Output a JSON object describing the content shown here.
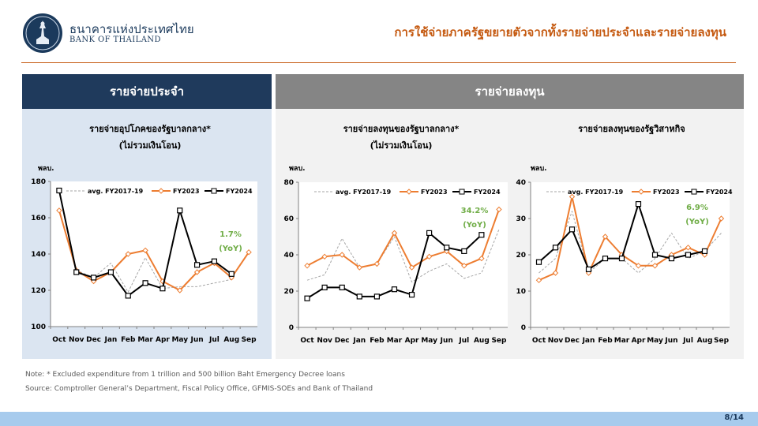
{
  "header": {
    "org_name_th": "ธนาคารแห่งประเทศไทย",
    "org_name_en": "BANK OF THAILAND",
    "slide_title": "การใช้จ่ายภาครัฐขยายตัวจากทั้งรายจ่ายประจำและรายจ่ายลงทุน"
  },
  "panels": {
    "left_title": "รายจ่ายประจำ",
    "right_title": "รายจ่ายลงทุน"
  },
  "colors": {
    "avg": "#a6a6a6",
    "fy2023": "#ed7d31",
    "fy2024": "#000000",
    "yoy": "#70ad47"
  },
  "chart_data": [
    {
      "type": "line",
      "title": "รายจ่ายอุปโภคของรัฐบาลกลาง*",
      "subtitle": "(ไม่รวมเงินโอน)",
      "ylabel": "พลบ.",
      "categories": [
        "Oct",
        "Nov",
        "Dec",
        "Jan",
        "Feb",
        "Mar",
        "Apr",
        "May",
        "Jun",
        "Jul",
        "Aug",
        "Sep"
      ],
      "ylim": [
        100,
        180
      ],
      "yticks": [
        100,
        120,
        140,
        160,
        180
      ],
      "series": [
        {
          "name": "avg. FY2017-19",
          "values": [
            null,
            131,
            127,
            135,
            119,
            138,
            121,
            122,
            122,
            124,
            126,
            null
          ]
        },
        {
          "name": "FY2023",
          "values": [
            164,
            131,
            125,
            130,
            140,
            142,
            125,
            120,
            130,
            135,
            127,
            141
          ]
        },
        {
          "name": "FY2024",
          "values": [
            175,
            130,
            127,
            130,
            117,
            124,
            121,
            164,
            134,
            136,
            129,
            null
          ]
        }
      ],
      "annotation": {
        "line1": "1.7%",
        "line2": "(YoY)"
      }
    },
    {
      "type": "line",
      "title": "รายจ่ายลงทุนของรัฐบาลกลาง*",
      "subtitle": "(ไม่รวมเงินโอน)",
      "ylabel": "พลบ.",
      "categories": [
        "Oct",
        "Nov",
        "Dec",
        "Jan",
        "Feb",
        "Mar",
        "Apr",
        "May",
        "Jun",
        "Jul",
        "Aug",
        "Sep"
      ],
      "ylim": [
        0,
        80
      ],
      "yticks": [
        0,
        20,
        40,
        60,
        80
      ],
      "series": [
        {
          "name": "avg. FY2017-19",
          "values": [
            26,
            29,
            49,
            33,
            35,
            50,
            25,
            31,
            35,
            27,
            30,
            54
          ]
        },
        {
          "name": "FY2023",
          "values": [
            34,
            39,
            40,
            33,
            35,
            52,
            33,
            39,
            42,
            34,
            38,
            65
          ]
        },
        {
          "name": "FY2024",
          "values": [
            16,
            22,
            22,
            17,
            17,
            21,
            18,
            52,
            44,
            42,
            51,
            null
          ]
        }
      ],
      "annotation": {
        "line1": "34.2%",
        "line2": "(YoY)"
      }
    },
    {
      "type": "line",
      "title": "รายจ่ายลงทุนของรัฐวิสาหกิจ",
      "subtitle": "",
      "ylabel": "พลบ.",
      "categories": [
        "Oct",
        "Nov",
        "Dec",
        "Jan",
        "Feb",
        "Mar",
        "Apr",
        "May",
        "Jun",
        "Jul",
        "Aug",
        "Sep"
      ],
      "ylim": [
        0,
        40
      ],
      "yticks": [
        0,
        10,
        20,
        30,
        40
      ],
      "series": [
        {
          "name": "avg. FY2017-19",
          "values": [
            15,
            19,
            32,
            15,
            19,
            19,
            15,
            19,
            26,
            19,
            21,
            26
          ]
        },
        {
          "name": "FY2023",
          "values": [
            13,
            15,
            36,
            15,
            25,
            20,
            17,
            17,
            20,
            22,
            20,
            30
          ]
        },
        {
          "name": "FY2024",
          "values": [
            18,
            22,
            27,
            16,
            19,
            19,
            34,
            20,
            19,
            20,
            21,
            null
          ]
        }
      ],
      "annotation": {
        "line1": "6.9%",
        "line2": "(YoY)"
      }
    }
  ],
  "footer": {
    "note": "Note: * Excluded expenditure from 1 trillion and 500 billion Baht Emergency Decree loans",
    "source": "Source: Comptroller General’s Department, Fiscal Policy Office, GFMIS-SOEs and Bank of Thailand",
    "page": "8/14"
  }
}
